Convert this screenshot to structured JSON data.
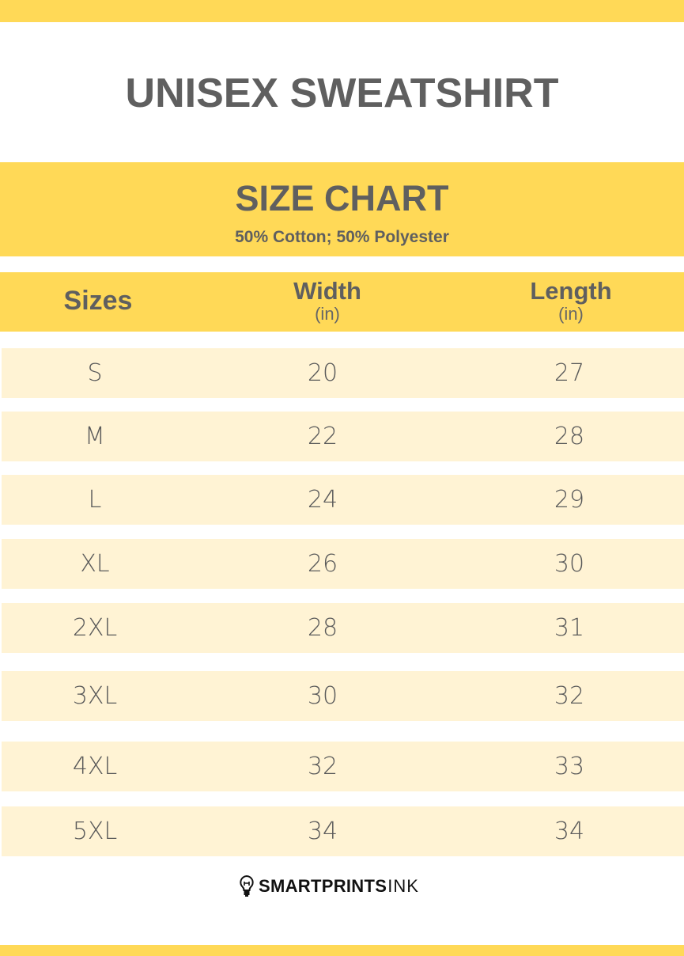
{
  "title": "UNISEX SWEATSHIRT",
  "banner": {
    "heading": "SIZE CHART",
    "subheading": "50% Cotton; 50% Polyester"
  },
  "table": {
    "headers": [
      {
        "label": "Sizes",
        "unit": ""
      },
      {
        "label": "Width",
        "unit": "(in)"
      },
      {
        "label": "Length",
        "unit": "(in)"
      }
    ],
    "rows": [
      [
        "S",
        "20",
        "27"
      ],
      [
        "M",
        "22",
        "28"
      ],
      [
        "L",
        "24",
        "29"
      ],
      [
        "XL",
        "26",
        "30"
      ],
      [
        "2XL",
        "28",
        "31"
      ],
      [
        "3XL",
        "30",
        "32"
      ],
      [
        "4XL",
        "32",
        "33"
      ],
      [
        "5XL",
        "34",
        "34"
      ]
    ]
  },
  "logo": {
    "bold": "SMARTPRINTS",
    "light": "INK",
    "icon": "lightbulb-icon"
  },
  "colors": {
    "accent": "#FFD957",
    "row_bg": "#FFF3D4",
    "text": "#606060"
  }
}
